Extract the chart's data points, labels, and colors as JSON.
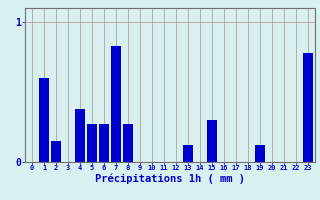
{
  "hours": [
    0,
    1,
    2,
    3,
    4,
    5,
    6,
    7,
    8,
    9,
    10,
    11,
    12,
    13,
    14,
    15,
    16,
    17,
    18,
    19,
    20,
    21,
    22,
    23
  ],
  "values": [
    0,
    0.6,
    0.15,
    0,
    0.38,
    0.27,
    0.27,
    0.83,
    0.27,
    0,
    0,
    0,
    0,
    0.12,
    0,
    0.3,
    0,
    0,
    0,
    0.12,
    0,
    0,
    0,
    0.78
  ],
  "bar_color": "#0000cc",
  "bg_color": "#d8f0f0",
  "grid_color": "#b09090",
  "axis_label_color": "#0000cc",
  "tick_color": "#0000cc",
  "xlabel": "Précipitations 1h ( mm )",
  "xlabel_fontsize": 7.5,
  "ylim": [
    0,
    1.1
  ],
  "ytick_labels": [
    "0",
    "1"
  ],
  "ytick_vals": [
    0,
    1
  ],
  "bar_width": 0.85
}
